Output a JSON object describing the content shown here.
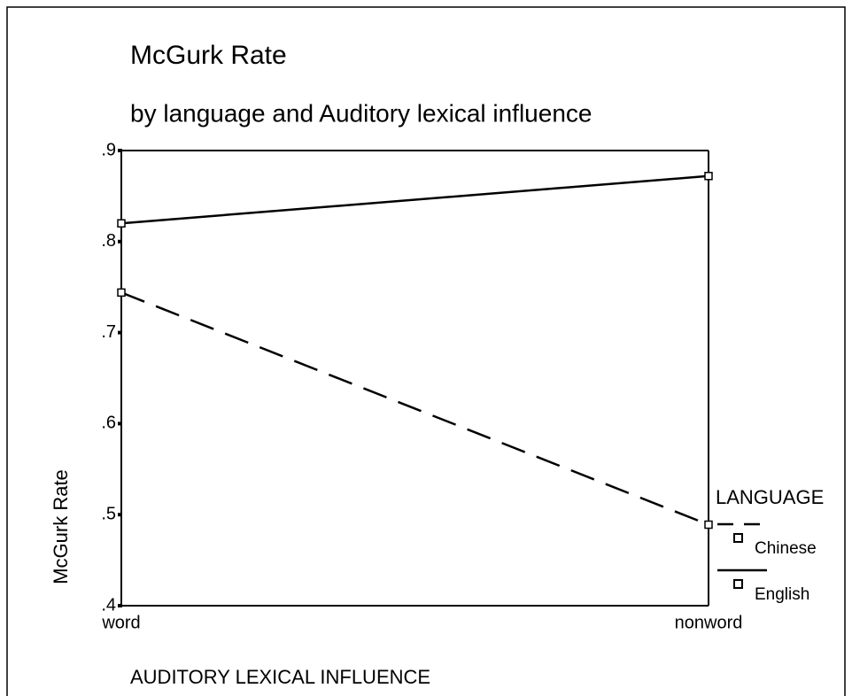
{
  "chart_data": {
    "type": "line",
    "title": "McGurk Rate",
    "subtitle": "by language and Auditory lexical influence",
    "xlabel": "AUDITORY LEXICAL INFLUENCE",
    "ylabel": "McGurk Rate",
    "categories": [
      "word",
      "nonword"
    ],
    "series": [
      {
        "name": "Chinese",
        "color": "#000000",
        "line_style": "dashed",
        "values": [
          0.744,
          0.489
        ]
      },
      {
        "name": "English",
        "color": "#000000",
        "line_style": "solid",
        "values": [
          0.82,
          0.872
        ]
      }
    ],
    "legend_title": "LANGUAGE",
    "legend": "right",
    "ylim": [
      0.4,
      0.9
    ],
    "yticks": [
      {
        "value": 0.4,
        "label": ".4"
      },
      {
        "value": 0.5,
        "label": ".5"
      },
      {
        "value": 0.6,
        "label": ".6"
      },
      {
        "value": 0.7,
        "label": ".7"
      },
      {
        "value": 0.8,
        "label": ".8"
      },
      {
        "value": 0.9,
        "label": ".9"
      }
    ],
    "grid": false
  }
}
